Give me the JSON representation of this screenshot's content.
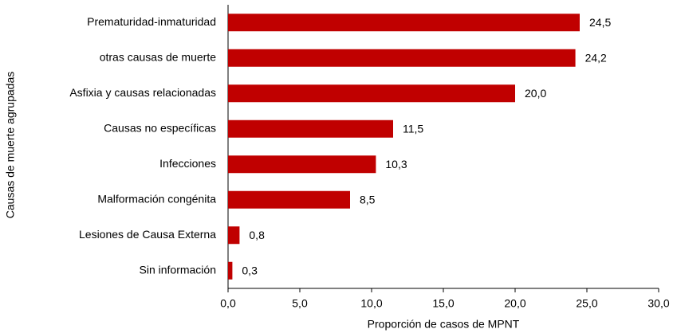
{
  "chart_data": {
    "type": "bar",
    "orientation": "horizontal",
    "x_label": "Proporción de casos de MPNT",
    "y_label": "Causas de muerte agrupadas",
    "categories": [
      "Prematuridad-inmaturidad",
      "otras causas de muerte",
      "Asfixia y causas relacionadas",
      "Causas no específicas",
      "Infecciones",
      "Malformación congénita",
      "Lesiones de Causa Externa",
      "Sin información"
    ],
    "values": [
      24.5,
      24.2,
      20.0,
      11.5,
      10.3,
      8.5,
      0.8,
      0.3
    ],
    "value_labels": [
      "24,5",
      "24,2",
      "20,0",
      "11,5",
      "10,3",
      "8,5",
      "0,8",
      "0,3"
    ],
    "color": "#c00000",
    "xlim": [
      0,
      30
    ],
    "xticks": [
      {
        "value": 0,
        "label": "0,0"
      },
      {
        "value": 5,
        "label": "5,0"
      },
      {
        "value": 10,
        "label": "10,0"
      },
      {
        "value": 15,
        "label": "15,0"
      },
      {
        "value": 20,
        "label": "20,0"
      },
      {
        "value": 25,
        "label": "25,0"
      },
      {
        "value": 30,
        "label": "30,0"
      }
    ],
    "grid": false
  }
}
